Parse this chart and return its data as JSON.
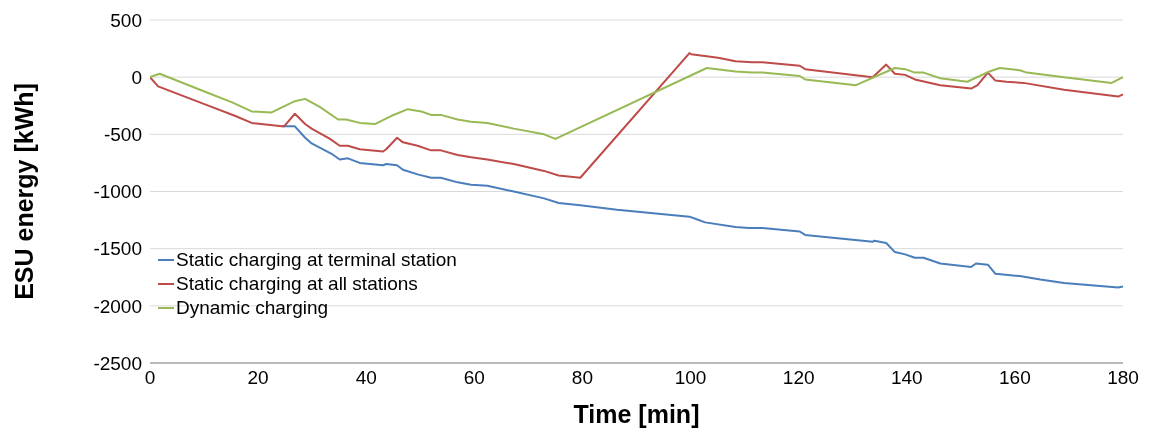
{
  "chart_data": {
    "type": "line",
    "xlabel": "Time [min]",
    "ylabel": "ESU energy [kWh]",
    "xlim": [
      0,
      180
    ],
    "xticks": [
      0,
      20,
      40,
      60,
      80,
      100,
      120,
      140,
      160,
      180
    ],
    "ylim": [
      -2500,
      500
    ],
    "yticks": [
      -2500,
      -2000,
      -1500,
      -1000,
      -500,
      0,
      500
    ],
    "grid": "y",
    "legend": "bottom left",
    "marker": "none",
    "line_style": "solid",
    "series": [
      {
        "name": "Static charging at terminal station",
        "color": "#4a7ebb",
        "x": [
          24.4,
          26.8,
          28.7,
          29.9,
          33.6,
          35.1,
          36.6,
          38.8,
          43.1,
          43.7,
          45.7,
          46.8,
          49.5,
          52,
          53.8,
          56.9,
          59.4,
          62.4,
          67.3,
          72.9,
          75.6,
          79.6,
          86.4,
          99.8,
          101,
          102.7,
          108.3,
          110.8,
          113.3,
          120.2,
          121.2,
          133.7,
          134,
          136.2,
          137.8,
          139.7,
          141.5,
          143.1,
          146.2,
          151.9,
          152.8,
          155,
          156.4,
          160.9,
          164.7,
          169.1,
          179.1,
          180
        ],
        "values": [
          -430,
          -430,
          -530,
          -580,
          -670,
          -720,
          -710,
          -750,
          -770,
          -760,
          -770,
          -810,
          -850,
          -880,
          -880,
          -920,
          -940,
          -950,
          -1000,
          -1060,
          -1100,
          -1120,
          -1160,
          -1220,
          -1240,
          -1270,
          -1310,
          -1320,
          -1320,
          -1350,
          -1380,
          -1440,
          -1430,
          -1450,
          -1530,
          -1550,
          -1580,
          -1580,
          -1630,
          -1660,
          -1630,
          -1640,
          -1720,
          -1740,
          -1770,
          -1800,
          -1840,
          -1830
        ]
      },
      {
        "name": "Static charging at all stations",
        "color": "#be4b48",
        "x": [
          0,
          1.5,
          10.3,
          15.8,
          18.8,
          24.4,
          24.8,
          26.8,
          28.7,
          29.9,
          33.3,
          35.1,
          36.6,
          38.8,
          43.1,
          43.7,
          45.7,
          46.8,
          49.5,
          52,
          53.8,
          56.9,
          59.4,
          62.4,
          67.3,
          72.9,
          75.6,
          79.6,
          99.8,
          100.1,
          105.1,
          108.3,
          111.4,
          113.3,
          120.2,
          121.2,
          133.7,
          136.2,
          137.8,
          139.7,
          141.5,
          146.2,
          151.9,
          153.1,
          155,
          156.4,
          158.4,
          161.6,
          169.1,
          179.1,
          180
        ],
        "values": [
          0,
          -80,
          -240,
          -340,
          -400,
          -430,
          -430,
          -320,
          -410,
          -450,
          -540,
          -600,
          -600,
          -630,
          -650,
          -630,
          -530,
          -570,
          -600,
          -640,
          -640,
          -680,
          -700,
          -720,
          -760,
          -820,
          -860,
          -880,
          210,
          200,
          170,
          140,
          130,
          130,
          100,
          70,
          0,
          110,
          30,
          20,
          -20,
          -70,
          -100,
          -70,
          40,
          -30,
          -40,
          -50,
          -110,
          -170,
          -150
        ]
      },
      {
        "name": "Dynamic charging",
        "color": "#98b954",
        "x": [
          0,
          1.8,
          10.3,
          15.2,
          18.8,
          22.4,
          26.8,
          28.7,
          31.4,
          34.8,
          36.3,
          38.8,
          41.6,
          44.6,
          47.7,
          50.2,
          52,
          53.8,
          56.9,
          59.4,
          62.4,
          67.3,
          72.9,
          75,
          103,
          108.3,
          111.4,
          113.3,
          120.2,
          121.2,
          130.6,
          137.8,
          139.7,
          141.5,
          143.1,
          146.2,
          151.2,
          155.3,
          157.2,
          160.9,
          162.2,
          169.1,
          177.9,
          180
        ],
        "values": [
          0,
          30,
          -130,
          -220,
          -300,
          -310,
          -210,
          -190,
          -260,
          -370,
          -370,
          -400,
          -410,
          -340,
          -280,
          -300,
          -330,
          -330,
          -370,
          -390,
          -400,
          -450,
          -500,
          -540,
          80,
          50,
          40,
          40,
          10,
          -20,
          -70,
          80,
          70,
          40,
          40,
          -10,
          -40,
          50,
          80,
          60,
          40,
          0,
          -50,
          0
        ]
      }
    ]
  }
}
